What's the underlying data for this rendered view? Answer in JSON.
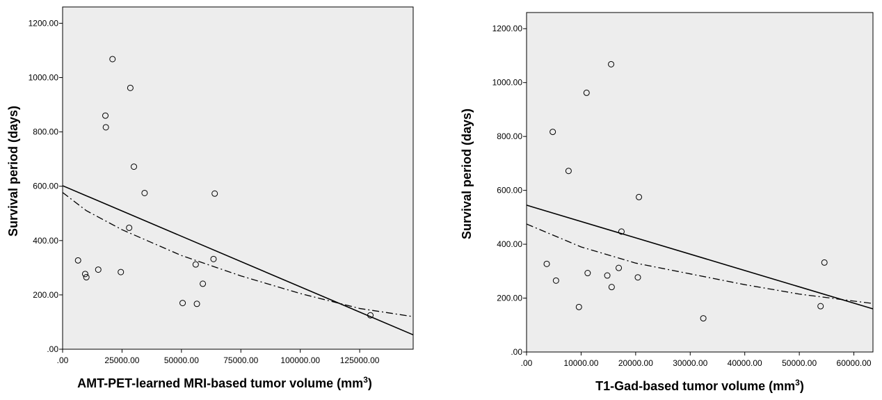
{
  "chart_data": [
    {
      "type": "scatter",
      "title": "",
      "xlabel": "AMT-PET-learned  MRI-based tumor volume (mm",
      "xlabel_sup": "3",
      "xlabel_end": ")",
      "ylabel": "Survival period (days)",
      "xlim": [
        0,
        147500
      ],
      "ylim": [
        0,
        1260
      ],
      "xticks": [
        0,
        25000,
        50000,
        75000,
        100000,
        125000
      ],
      "xtick_labels": [
        ".00",
        "25000.00",
        "50000.00",
        "75000.00",
        "100000.00",
        "125000.00"
      ],
      "yticks": [
        0,
        200,
        400,
        600,
        800,
        1000,
        1200
      ],
      "ytick_labels": [
        ".00",
        "200.00",
        "400.00",
        "600.00",
        "800.00",
        "1000.00",
        "1200.00"
      ],
      "points": [
        {
          "x": 21000,
          "y": 1068
        },
        {
          "x": 28500,
          "y": 962
        },
        {
          "x": 18000,
          "y": 860
        },
        {
          "x": 18200,
          "y": 817
        },
        {
          "x": 30000,
          "y": 672
        },
        {
          "x": 34500,
          "y": 575
        },
        {
          "x": 64000,
          "y": 573
        },
        {
          "x": 28000,
          "y": 447
        },
        {
          "x": 6500,
          "y": 327
        },
        {
          "x": 63500,
          "y": 332
        },
        {
          "x": 56000,
          "y": 312
        },
        {
          "x": 15000,
          "y": 293
        },
        {
          "x": 24500,
          "y": 284
        },
        {
          "x": 9500,
          "y": 277
        },
        {
          "x": 10000,
          "y": 265
        },
        {
          "x": 59000,
          "y": 241
        },
        {
          "x": 50500,
          "y": 170
        },
        {
          "x": 56500,
          "y": 167
        },
        {
          "x": 129500,
          "y": 125
        }
      ],
      "fit_linear": {
        "style": "solid",
        "x": [
          0,
          147500
        ],
        "y": [
          602,
          53
        ]
      },
      "fit_curve": {
        "style": "dash-dot",
        "x": [
          0,
          10000,
          25000,
          50000,
          75000,
          100000,
          125000,
          147500
        ],
        "y": [
          577,
          510,
          440,
          345,
          270,
          205,
          150,
          120
        ]
      }
    },
    {
      "type": "scatter",
      "title": "",
      "xlabel": "T1-Gad-based tumor volume (mm",
      "xlabel_sup": "3",
      "xlabel_end": ")",
      "ylabel": "Survival period (days)",
      "xlim": [
        0,
        63500
      ],
      "ylim": [
        0,
        1260
      ],
      "xticks": [
        0,
        10000,
        20000,
        30000,
        40000,
        50000,
        60000
      ],
      "xtick_labels": [
        ".00",
        "10000.00",
        "20000.00",
        "30000.00",
        "40000.00",
        "50000.00",
        "60000.00"
      ],
      "yticks": [
        0,
        200,
        400,
        600,
        800,
        1000,
        1200
      ],
      "ytick_labels": [
        ".00",
        "200.00",
        "400.00",
        "600.00",
        "800.00",
        "1000.00",
        "1200.00"
      ],
      "points": [
        {
          "x": 15500,
          "y": 1068
        },
        {
          "x": 11000,
          "y": 962
        },
        {
          "x": 4800,
          "y": 817
        },
        {
          "x": 7700,
          "y": 672
        },
        {
          "x": 20600,
          "y": 575
        },
        {
          "x": 17400,
          "y": 447
        },
        {
          "x": 3700,
          "y": 327
        },
        {
          "x": 54600,
          "y": 332
        },
        {
          "x": 16900,
          "y": 312
        },
        {
          "x": 11200,
          "y": 293
        },
        {
          "x": 14800,
          "y": 284
        },
        {
          "x": 20400,
          "y": 277
        },
        {
          "x": 5400,
          "y": 265
        },
        {
          "x": 15600,
          "y": 241
        },
        {
          "x": 9600,
          "y": 167
        },
        {
          "x": 53900,
          "y": 170
        },
        {
          "x": 32400,
          "y": 125
        }
      ],
      "fit_linear": {
        "style": "solid",
        "x": [
          0,
          63500
        ],
        "y": [
          545,
          160
        ]
      },
      "fit_curve": {
        "style": "dash-dot",
        "x": [
          0,
          10000,
          20000,
          30000,
          40000,
          50000,
          63500
        ],
        "y": [
          475,
          390,
          330,
          290,
          250,
          215,
          180
        ]
      }
    }
  ]
}
